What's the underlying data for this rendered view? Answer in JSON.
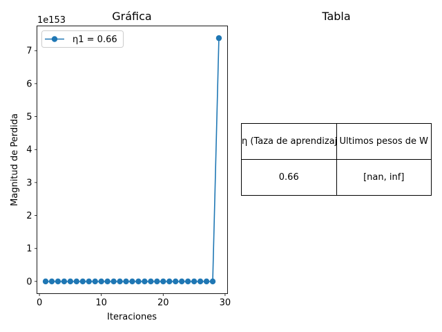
{
  "chart_data": [
    {
      "type": "line",
      "title": "Gráfica",
      "xlabel": "Iteraciones",
      "ylabel": "Magnitud de Perdida",
      "offset_text": "1e153",
      "xlim": [
        -0.4,
        30.4
      ],
      "ylim": [
        -0.37,
        7.75
      ],
      "xticks": [
        0,
        10,
        20,
        30
      ],
      "yticks": [
        0,
        1,
        2,
        3,
        4,
        5,
        6,
        7
      ],
      "grid": false,
      "legend_position": "upper left",
      "color": "#1f77b4",
      "series": [
        {
          "name": "η1 = 0.66",
          "x": [
            1,
            2,
            3,
            4,
            5,
            6,
            7,
            8,
            9,
            10,
            11,
            12,
            13,
            14,
            15,
            16,
            17,
            18,
            19,
            20,
            21,
            22,
            23,
            24,
            25,
            26,
            27,
            28,
            29
          ],
          "values": [
            0,
            0,
            0,
            0,
            0,
            0,
            0,
            0,
            0,
            0,
            0,
            0,
            0,
            0,
            0,
            0,
            0,
            0,
            0,
            0,
            0,
            0,
            0,
            0,
            0,
            0,
            0,
            0,
            7.38
          ]
        }
      ]
    },
    {
      "type": "table",
      "title": "Tabla",
      "headers": [
        "η (Taza de aprendizaje)",
        "Ultimos pesos de W"
      ],
      "rows": [
        [
          "0.66",
          "[nan, inf]"
        ]
      ]
    }
  ]
}
